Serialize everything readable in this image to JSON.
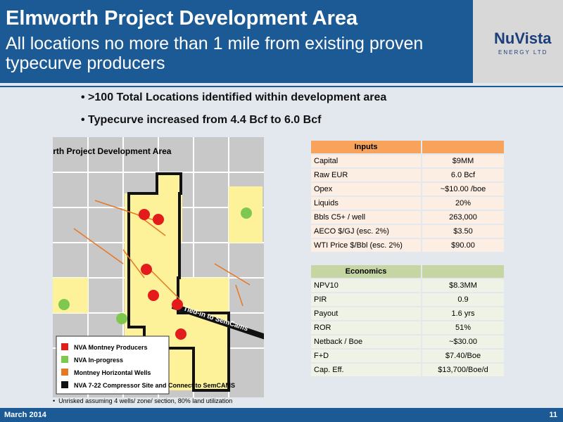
{
  "header": {
    "title": "Elmworth Project Development Area",
    "subtitle": "All locations no more than 1 mile from existing proven typecurve producers",
    "logo": "NuVista",
    "logo_sub": "ENERGY LTD"
  },
  "bullets": [
    ">100 Total Locations identified within development area",
    "Typecurve increased from 4.4 Bcf to 6.0 Bcf"
  ],
  "map": {
    "title": "Elmworth Project Development Area",
    "arrow_label": "Tied-in to SemCams",
    "legend": [
      "NVA Montney Producers",
      "NVA In-progress",
      "Montney Horizontal Wells",
      "NVA 7-22 Compressor Site and Connect to SemCAMS"
    ]
  },
  "inputs": {
    "header": "Inputs",
    "rows": [
      [
        "Capital",
        "$9MM"
      ],
      [
        "Raw EUR",
        "6.0 Bcf"
      ],
      [
        "Opex",
        "~$10.00 /boe"
      ],
      [
        "Liquids",
        "20%"
      ],
      [
        "Bbls C5+ / well",
        "263,000"
      ],
      [
        "AECO $/GJ (esc. 2%)",
        "$3.50"
      ],
      [
        "WTI Price $/Bbl (esc. 2%)",
        "$90.00"
      ]
    ]
  },
  "economics": {
    "header": "Economics",
    "rows": [
      [
        "NPV10",
        "$8.3MM"
      ],
      [
        "PIR",
        "0.9"
      ],
      [
        "Payout",
        "1.6 yrs"
      ],
      [
        "ROR",
        "51%"
      ],
      [
        "Netback / Boe",
        "~$30.00"
      ],
      [
        "F+D",
        "$7.40/Boe"
      ],
      [
        "Cap. Eff.",
        "$13,700/Boe/d"
      ]
    ]
  },
  "footnote": "Unrisked assuming 4 wells/ zone/ section, 80% land utilization",
  "footer": {
    "date": "March 2014",
    "page": "11"
  }
}
